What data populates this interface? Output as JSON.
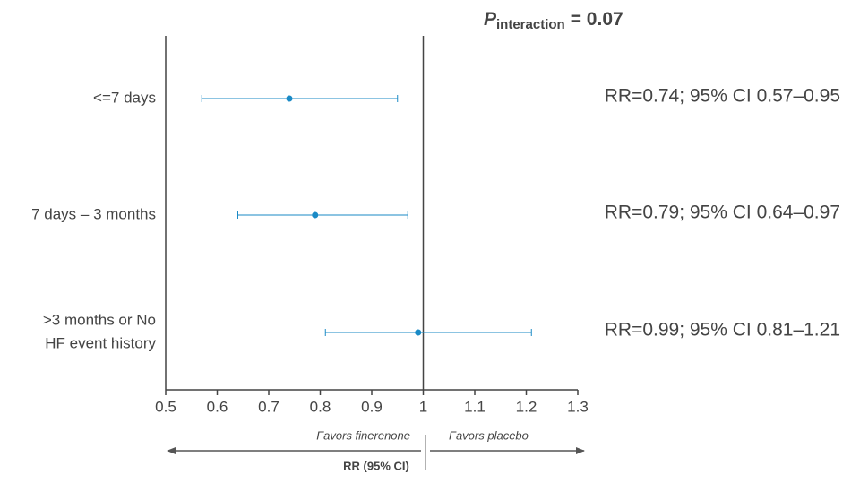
{
  "chart_data": {
    "type": "forest",
    "title_symbol": "P",
    "title_subscript": "interaction",
    "title_value": "= 0.07",
    "categories": [
      [
        "<=7 days"
      ],
      [
        "7 days – 3 months"
      ],
      [
        ">3 months or No",
        "HF event history"
      ]
    ],
    "series": [
      {
        "color": "#1a8ac6",
        "values": [
          0.74,
          0.79,
          0.99
        ],
        "ci_low": [
          0.57,
          0.64,
          0.81
        ],
        "ci_high": [
          0.95,
          0.97,
          1.21
        ]
      }
    ],
    "annotations": [
      "RR=0.74; 95% CI 0.57–0.95",
      "RR=0.79; 95% CI 0.64–0.97",
      "RR=0.99; 95% CI 0.81–1.21"
    ],
    "xlim": [
      0.5,
      1.3
    ],
    "xticks": [
      0.5,
      0.6,
      0.7,
      0.8,
      0.9,
      1,
      1.1,
      1.2,
      1.3
    ],
    "reference_line": 1,
    "left_note": "Favors finerenone",
    "right_note": "Favors placebo",
    "xlabel": "RR (95% CI)"
  }
}
